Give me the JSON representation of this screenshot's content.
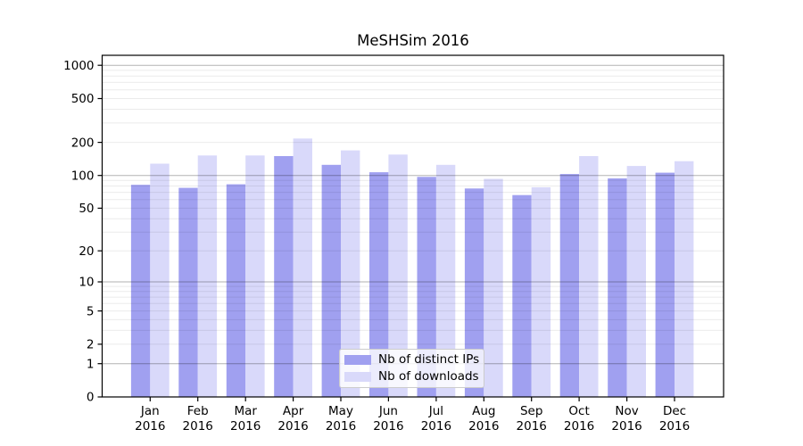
{
  "chart_data": {
    "type": "bar",
    "title": "MeSHSim 2016",
    "categories": [
      "Jan",
      "Feb",
      "Mar",
      "Apr",
      "May",
      "Jun",
      "Jul",
      "Aug",
      "Sep",
      "Oct",
      "Nov",
      "Dec"
    ],
    "category_year": "2016",
    "series": [
      {
        "name": "Nb of distinct IPs",
        "color": "#a0a0f0",
        "values": [
          82,
          77,
          83,
          150,
          125,
          107,
          97,
          76,
          66,
          103,
          94,
          106
        ]
      },
      {
        "name": "Nb of downloads",
        "color": "#d9d9fa",
        "values": [
          128,
          152,
          152,
          217,
          169,
          155,
          125,
          93,
          78,
          150,
          122,
          135
        ]
      }
    ],
    "y_axis": {
      "scale": "log10(1+y)",
      "tick_values": [
        0,
        1,
        2,
        5,
        10,
        20,
        50,
        100,
        200,
        500,
        1000
      ],
      "range": [
        0,
        1230
      ],
      "major_gridlines": [
        1,
        10,
        100,
        1000
      ]
    },
    "grid": "on",
    "legend_position": "lower center",
    "colors": {
      "axis_frame": "#000000",
      "major_grid": "rgba(0,0,0,0.30)",
      "minor_grid": "rgba(0,0,0,0.08)",
      "background": "#ffffff"
    }
  }
}
